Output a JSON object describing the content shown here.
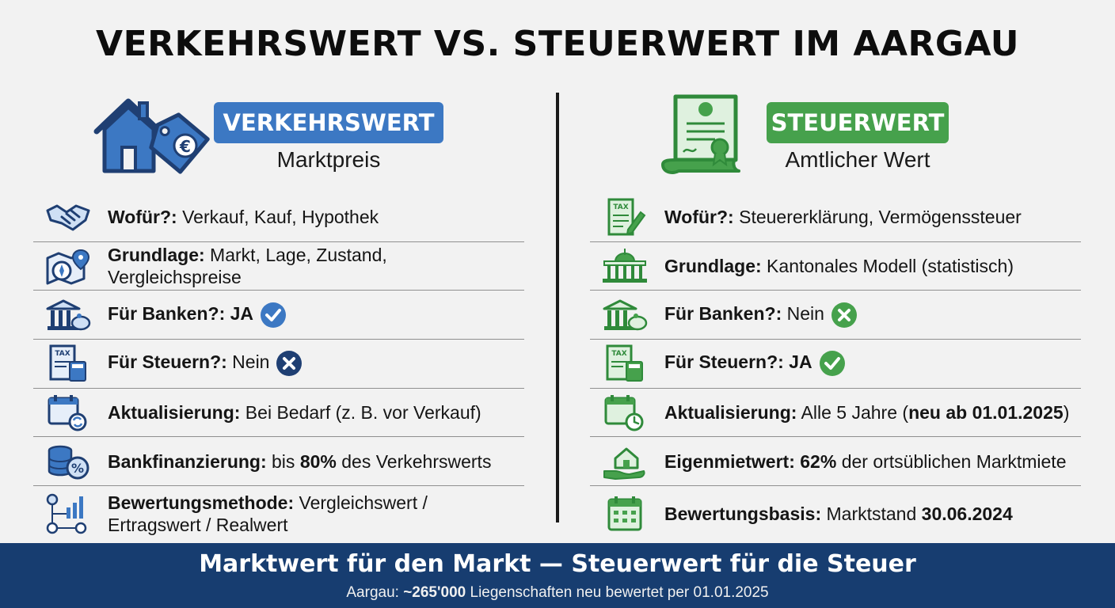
{
  "title": "VERKEHRSWERT VS. STEUERWERT IM AARGAU",
  "colors": {
    "blue": "#3c78c3",
    "green": "#46a14c",
    "navy": "#173d70",
    "dark_icon": "#1f3f73"
  },
  "left": {
    "badge": "VERKEHRSWERT",
    "subtitle": "Marktpreis",
    "icon": "house-price-tag-icon",
    "rows": [
      {
        "icon": "handshake-icon",
        "label": "Wofür?:",
        "text": " Verkauf, Kauf, Hypothek"
      },
      {
        "icon": "compass-map-pin-icon",
        "label": "Grundlage:",
        "text": " Markt, Lage, Zustand, Vergleichspreise"
      },
      {
        "icon": "bank-piggy-icon",
        "label": "Für Banken?:",
        "bold_value": " JA",
        "status": "yes"
      },
      {
        "icon": "tax-calculator-icon",
        "label": "Für Steuern?:",
        "text": " Nein",
        "status": "no"
      },
      {
        "icon": "calendar-refresh-icon",
        "label": "Aktualisierung:",
        "text": " Bei Bedarf (z. B. vor Verkauf)"
      },
      {
        "icon": "coins-percent-icon",
        "label": "Bankfinanzierung:",
        "text": " bis ",
        "bold_mid": "80%",
        "text2": " des Verkehrswerts"
      },
      {
        "icon": "valuation-chart-icon",
        "label": "Bewertungsmethode:",
        "text": " Vergleichswert /",
        "line2": "Ertragswert / Realwert"
      }
    ]
  },
  "right": {
    "badge": "STEUERWERT",
    "subtitle": "Amtlicher Wert",
    "icon": "certificate-document-icon",
    "rows": [
      {
        "icon": "tax-document-pen-icon",
        "label": "Wofür?:",
        "text": " Steuererklärung, Vermögenssteuer"
      },
      {
        "icon": "government-building-icon",
        "label": "Grundlage:",
        "text": " Kantonales Modell (statistisch)"
      },
      {
        "icon": "bank-piggy-icon",
        "label": "Für Banken?:",
        "text": " Nein",
        "status": "no"
      },
      {
        "icon": "tax-calculator-icon",
        "label": "Für Steuern?:",
        "bold_value": " JA",
        "status": "yes"
      },
      {
        "icon": "calendar-clock-icon",
        "label": "Aktualisierung:",
        "text": " Alle 5 Jahre (",
        "bold_mid": "neu ab 01.01.2025",
        "text2": ")"
      },
      {
        "icon": "house-hand-icon",
        "label": "Eigenmietwert:",
        "bold_pre": " 62%",
        "text": " der ortsüblichen Marktmiete"
      },
      {
        "icon": "calendar-icon",
        "label": "Bewertungsbasis:",
        "text": " Marktstand ",
        "bold_mid": "30.06.2024"
      }
    ]
  },
  "footer": {
    "headline": "Marktwert für den Markt — Steuerwert für die Steuer",
    "note_prefix": "Aargau: ",
    "note_bold": "~265'000",
    "note_suffix": " Liegenschaften neu bewertet per 01.01.2025"
  }
}
